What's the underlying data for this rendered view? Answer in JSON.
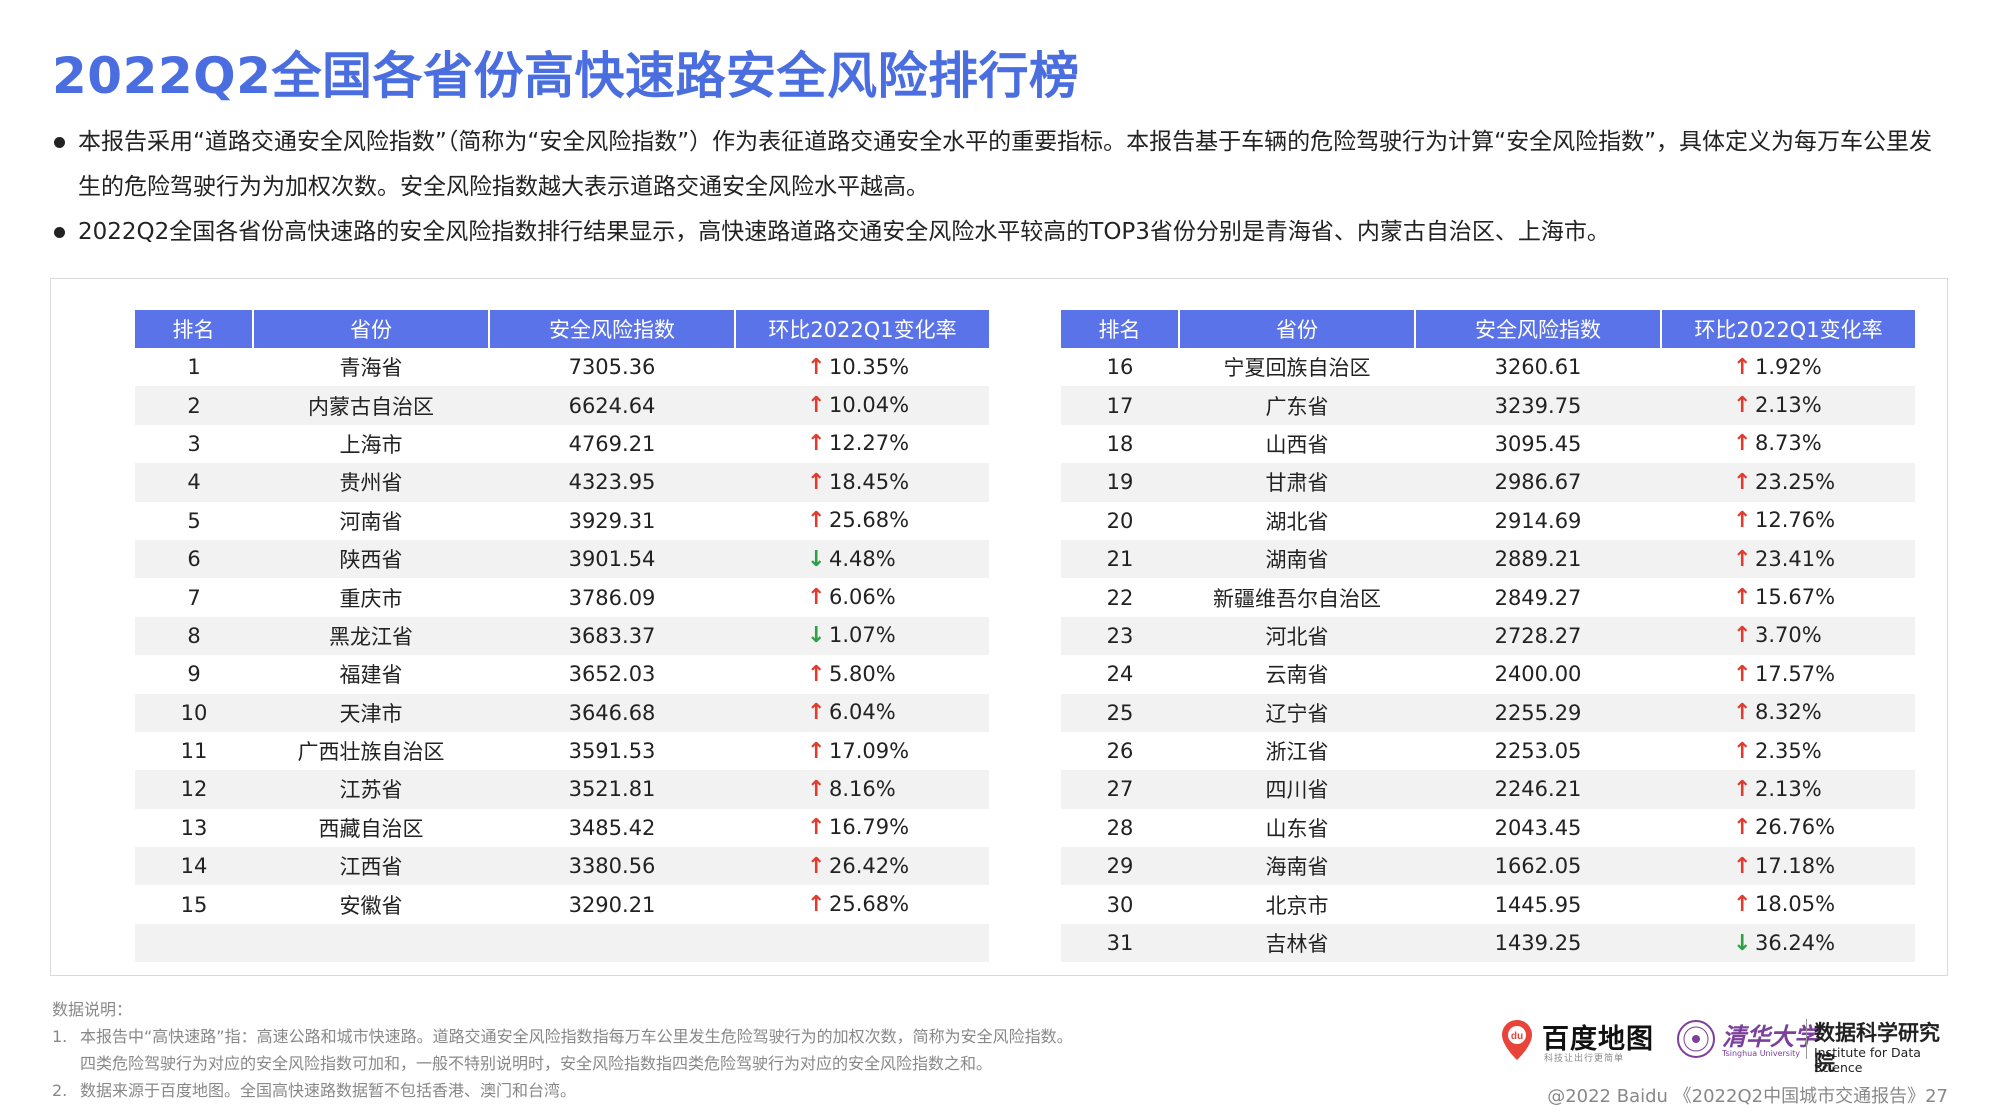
{
  "title": "2022Q2全国各省份高快速路安全风险排行榜",
  "bullets": [
    "本报告采用“道路交通安全风险指数”（简称为“安全风险指数”）作为表征道路交通安全水平的重要指标。本报告基于车辆的危险驾驶行为计算“安全风险指数”，具体定义为每万车公里发生的危险驾驶行为为加权次数。安全风险指数越大表示道路交通安全风险水平越高。",
    "2022Q2全国各省份高快速路的安全风险指数排行结果显示，高快速路道路交通安全风险水平较高的TOP3省份分别是青海省、内蒙古自治区、上海市。"
  ],
  "table": {
    "headers": [
      "排名",
      "省份",
      "安全风险指数",
      "环比2022Q1变化率"
    ],
    "arrow_up_color": "#e03b2d",
    "arrow_down_color": "#2ea043",
    "header_color": "#5b73e8",
    "left_rows": [
      {
        "rank": "1",
        "province": "青海省",
        "index": "7305.36",
        "dir": "up",
        "change": "10.35%"
      },
      {
        "rank": "2",
        "province": "内蒙古自治区",
        "index": "6624.64",
        "dir": "up",
        "change": "10.04%"
      },
      {
        "rank": "3",
        "province": "上海市",
        "index": "4769.21",
        "dir": "up",
        "change": "12.27%"
      },
      {
        "rank": "4",
        "province": "贵州省",
        "index": "4323.95",
        "dir": "up",
        "change": "18.45%"
      },
      {
        "rank": "5",
        "province": "河南省",
        "index": "3929.31",
        "dir": "up",
        "change": "25.68%"
      },
      {
        "rank": "6",
        "province": "陕西省",
        "index": "3901.54",
        "dir": "down",
        "change": "4.48%"
      },
      {
        "rank": "7",
        "province": "重庆市",
        "index": "3786.09",
        "dir": "up",
        "change": "6.06%"
      },
      {
        "rank": "8",
        "province": "黑龙江省",
        "index": "3683.37",
        "dir": "down",
        "change": "1.07%"
      },
      {
        "rank": "9",
        "province": "福建省",
        "index": "3652.03",
        "dir": "up",
        "change": "5.80%"
      },
      {
        "rank": "10",
        "province": "天津市",
        "index": "3646.68",
        "dir": "up",
        "change": "6.04%"
      },
      {
        "rank": "11",
        "province": "广西壮族自治区",
        "index": "3591.53",
        "dir": "up",
        "change": "17.09%"
      },
      {
        "rank": "12",
        "province": "江苏省",
        "index": "3521.81",
        "dir": "up",
        "change": "8.16%"
      },
      {
        "rank": "13",
        "province": "西藏自治区",
        "index": "3485.42",
        "dir": "up",
        "change": "16.79%"
      },
      {
        "rank": "14",
        "province": "江西省",
        "index": "3380.56",
        "dir": "up",
        "change": "26.42%"
      },
      {
        "rank": "15",
        "province": "安徽省",
        "index": "3290.21",
        "dir": "up",
        "change": "25.68%"
      }
    ],
    "right_rows": [
      {
        "rank": "16",
        "province": "宁夏回族自治区",
        "index": "3260.61",
        "dir": "up",
        "change": "1.92%"
      },
      {
        "rank": "17",
        "province": "广东省",
        "index": "3239.75",
        "dir": "up",
        "change": "2.13%"
      },
      {
        "rank": "18",
        "province": "山西省",
        "index": "3095.45",
        "dir": "up",
        "change": "8.73%"
      },
      {
        "rank": "19",
        "province": "甘肃省",
        "index": "2986.67",
        "dir": "up",
        "change": "23.25%"
      },
      {
        "rank": "20",
        "province": "湖北省",
        "index": "2914.69",
        "dir": "up",
        "change": "12.76%"
      },
      {
        "rank": "21",
        "province": "湖南省",
        "index": "2889.21",
        "dir": "up",
        "change": "23.41%"
      },
      {
        "rank": "22",
        "province": "新疆维吾尔自治区",
        "index": "2849.27",
        "dir": "up",
        "change": "15.67%"
      },
      {
        "rank": "23",
        "province": "河北省",
        "index": "2728.27",
        "dir": "up",
        "change": "3.70%"
      },
      {
        "rank": "24",
        "province": "云南省",
        "index": "2400.00",
        "dir": "up",
        "change": "17.57%"
      },
      {
        "rank": "25",
        "province": "辽宁省",
        "index": "2255.29",
        "dir": "up",
        "change": "8.32%"
      },
      {
        "rank": "26",
        "province": "浙江省",
        "index": "2253.05",
        "dir": "up",
        "change": "2.35%"
      },
      {
        "rank": "27",
        "province": "四川省",
        "index": "2246.21",
        "dir": "up",
        "change": "2.13%"
      },
      {
        "rank": "28",
        "province": "山东省",
        "index": "2043.45",
        "dir": "up",
        "change": "26.76%"
      },
      {
        "rank": "29",
        "province": "海南省",
        "index": "1662.05",
        "dir": "up",
        "change": "17.18%"
      },
      {
        "rank": "30",
        "province": "北京市",
        "index": "1445.95",
        "dir": "up",
        "change": "18.05%"
      },
      {
        "rank": "31",
        "province": "吉林省",
        "index": "1439.25",
        "dir": "down",
        "change": "36.24%"
      }
    ]
  },
  "notes": {
    "heading": "数据说明：",
    "items": [
      {
        "num": "1.",
        "lines": [
          "本报告中“高快速路”指：高速公路和城市快速路。道路交通安全风险指数指每万车公里发生危险驾驶行为的加权次数，简称为安全风险指数。",
          "四类危险驾驶行为对应的安全风险指数可加和，一般不特别说明时，安全风险指数指四类危险驾驶行为对应的安全风险指数之和。"
        ]
      },
      {
        "num": "2.",
        "lines": [
          "数据来源于百度地图。全国高快速路数据暂不包括香港、澳门和台湾。"
        ]
      }
    ]
  },
  "logos": {
    "baidu_name": "百度地图",
    "baidu_slogan": "科技让出行更简单",
    "tsinghua_name": "清华大学",
    "tsinghua_en": "Tsinghua University",
    "institute_cn": "数据科学研究院",
    "institute_en": "Institute for Data Science"
  },
  "footer": "@2022 Baidu 《2022Q2中国城市交通报告》27"
}
